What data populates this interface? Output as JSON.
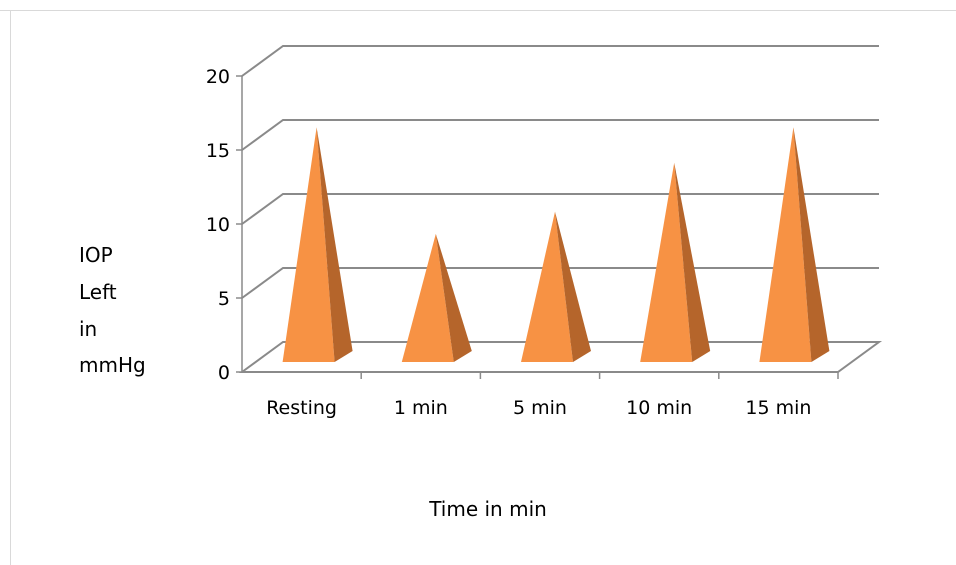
{
  "chart_data": {
    "type": "bar",
    "style": "3d-pyramid",
    "categories": [
      "Resting",
      "1 min",
      "5 min",
      "10 min",
      "15 min"
    ],
    "series": [
      {
        "values": [
          16.4,
          9.2,
          10.7,
          14.0,
          16.4
        ]
      }
    ],
    "ylabel_lines": [
      "IOP",
      "Left",
      "in",
      "mmHg"
    ],
    "xlabel": "Time in min",
    "ylim": [
      0,
      20
    ],
    "yticks": [
      0,
      5,
      10,
      15,
      20
    ],
    "grid": true,
    "legend": "none",
    "colors": {
      "front_face": "#f79244",
      "side_face": "#b5652b",
      "gridline": "#8a8a8a",
      "axis": "#8a8a8a",
      "frame": "#d9d9d9"
    }
  }
}
